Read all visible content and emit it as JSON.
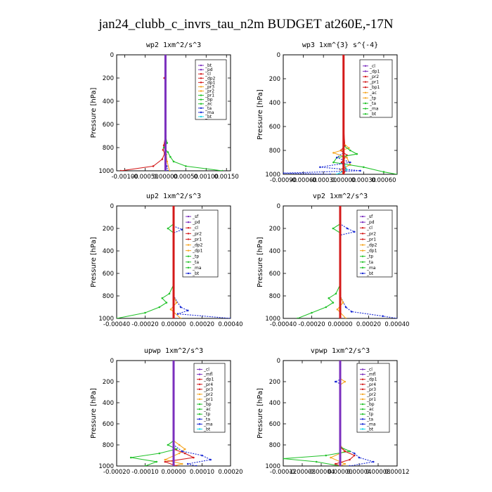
{
  "title": "jan24_clubb_c_invrs_tau_n2m  BUDGET at260E,-17N",
  "ylabel": "Pressure [hPa]",
  "colors": {
    "purple": "#7b2fbe",
    "red": "#d41a1a",
    "orange": "#f5a623",
    "green": "#22c22a",
    "blue": "#1a2ad4",
    "cyan": "#18d8e8",
    "gray": "#8a8a8a"
  },
  "chart_data": [
    {
      "type": "line",
      "title": "wp2  1xm^2/s^3",
      "xlim": [
        -0.0012,
        0.0016
      ],
      "ylim": [
        1000,
        0
      ],
      "xticks": [
        -0.001,
        -0.0005,
        0.0,
        0.0005,
        0.001,
        0.0015
      ],
      "xtick_labels": [
        "-0.00100",
        "-0.00050",
        "0.00000",
        "0.00050",
        "0.00100",
        "0.00150"
      ],
      "yticks": [
        0,
        200,
        400,
        600,
        800,
        1000
      ],
      "ytick_labels": [
        "0",
        "200",
        "400",
        "600",
        "800",
        "1000"
      ],
      "legend": [
        "_bt",
        "_pd",
        "_cl",
        "_dp2",
        "_dp1",
        "_pr3",
        "_pr2",
        "_pr1",
        "_bp",
        "_ac",
        "_ta",
        "_ma",
        "_bt"
      ],
      "series": [
        {
          "name": "_pd",
          "color": "purple",
          "p": [
            0,
            200,
            400,
            600,
            800,
            900,
            960,
            1000
          ],
          "v": [
            0,
            0,
            0,
            0,
            0,
            0,
            0,
            0
          ]
        },
        {
          "name": "_dp1",
          "color": "red",
          "p": [
            0,
            180,
            200,
            220,
            400,
            700,
            780,
            820,
            850,
            900,
            960,
            1000
          ],
          "v": [
            0,
            0,
            -3e-05,
            0,
            0,
            0,
            -4e-05,
            -6e-05,
            -2e-05,
            -8e-05,
            -0.0003,
            -0.0011
          ]
        },
        {
          "name": "_pr1",
          "color": "green",
          "p": [
            0,
            700,
            760,
            800,
            840,
            880,
            920,
            960,
            1000
          ],
          "v": [
            0,
            0,
            4e-05,
            -4e-05,
            6e-05,
            0.00012,
            0.0002,
            0.0005,
            0.0014
          ]
        },
        {
          "name": "_pr2",
          "color": "orange",
          "p": [
            0,
            800,
            860,
            920,
            1000
          ],
          "v": [
            0,
            0,
            2e-05,
            4e-05,
            0.0001
          ]
        },
        {
          "name": "_ta",
          "color": "blue",
          "p": [
            0,
            900,
            960,
            1000
          ],
          "v": [
            0,
            0,
            3e-05,
            6e-05
          ]
        }
      ]
    },
    {
      "type": "line",
      "title": "wp3  1xm^{3} s^{-4}",
      "xlim": [
        -0.0009,
        0.0008
      ],
      "ylim": [
        1000,
        0
      ],
      "xticks": [
        -0.0009,
        -0.0006,
        -0.0003,
        0.0,
        0.0003,
        0.0006
      ],
      "xtick_labels": [
        "-0.00090",
        "-0.00060",
        "-0.00030",
        "0.00000",
        "0.00030",
        "0.00060"
      ],
      "yticks": [
        0,
        200,
        400,
        600,
        800,
        1000
      ],
      "ytick_labels": [
        "0",
        "200",
        "400",
        "600",
        "800",
        "1000"
      ],
      "legend": [
        "_cl",
        "_dp1",
        "_pr2",
        "_pr1",
        "_bp1",
        "_ac",
        "_tp",
        "_ta",
        "_ma",
        "_bt"
      ],
      "series": [
        {
          "name": "_dp1",
          "color": "red",
          "p": [
            0,
            200,
            400,
            600,
            760,
            800,
            840,
            900,
            960,
            1000
          ],
          "v": [
            0,
            0,
            0,
            0,
            2e-05,
            -4e-05,
            5e-05,
            -3e-05,
            4e-05,
            0
          ]
        },
        {
          "name": "_pr2",
          "color": "orange",
          "p": [
            0,
            740,
            780,
            820,
            860,
            920,
            960,
            1000
          ],
          "v": [
            0,
            0,
            8e-05,
            -0.00015,
            5e-05,
            0.0001,
            -5e-05,
            0
          ]
        },
        {
          "name": "_ac",
          "color": "green",
          "p": [
            0,
            760,
            800,
            830,
            860,
            900,
            940,
            980,
            1000
          ],
          "v": [
            0,
            0,
            0.0001,
            0.0002,
            -0.0001,
            -0.00015,
            0.0003,
            0.0006,
            0.0008
          ]
        },
        {
          "name": "_ta",
          "color": "blue",
          "p": [
            0,
            820,
            860,
            900,
            940,
            970,
            990,
            1000
          ],
          "v": [
            0,
            0,
            -0.0001,
            0.0001,
            -0.00035,
            0.00025,
            -0.0009,
            -0.0002
          ]
        },
        {
          "name": "_tp",
          "color": "cyan",
          "p": [
            0,
            900,
            960,
            1000
          ],
          "v": [
            0,
            0,
            5e-05,
            -0.0001
          ]
        },
        {
          "name": "_cl",
          "color": "red",
          "p": [
            0,
            1000
          ],
          "v": [
            0,
            0
          ]
        }
      ]
    },
    {
      "type": "line",
      "title": "up2  1xm^2/s^3",
      "xlim": [
        -0.0004,
        0.0004
      ],
      "ylim": [
        1000,
        0
      ],
      "xticks": [
        -0.0004,
        -0.0002,
        0.0,
        0.0002,
        0.0004
      ],
      "xtick_labels": [
        "-0.00040",
        "-0.00020",
        "0.00000",
        "0.00020",
        "0.00040"
      ],
      "yticks": [
        0,
        200,
        400,
        600,
        800,
        1000
      ],
      "ytick_labels": [
        "0",
        "200",
        "400",
        "600",
        "800",
        "1000"
      ],
      "legend": [
        "_sf",
        "_pd",
        "_cl",
        "_pr2",
        "_pr1",
        "_dp2",
        "_dp1",
        "_tp",
        "_ta",
        "_ma",
        "_bt"
      ],
      "series": [
        {
          "name": "_pr1",
          "color": "green",
          "p": [
            0,
            160,
            200,
            240,
            700,
            780,
            820,
            860,
            900,
            950,
            1000
          ],
          "v": [
            0,
            0,
            -4e-05,
            0,
            0,
            -3e-05,
            -8e-05,
            -5e-05,
            -0.0001,
            -0.0002,
            -0.0004
          ]
        },
        {
          "name": "_dp1",
          "color": "blue",
          "p": [
            0,
            180,
            210,
            240,
            800,
            900,
            930,
            960,
            1000
          ],
          "v": [
            0,
            0,
            6e-05,
            0,
            0,
            5e-05,
            0.0001,
            3e-05,
            0.0004
          ]
        },
        {
          "name": "_pr2",
          "color": "orange",
          "p": [
            0,
            800,
            860,
            920,
            1000
          ],
          "v": [
            0,
            0,
            2e-05,
            -2e-05,
            5e-05
          ]
        },
        {
          "name": "_cl",
          "color": "red",
          "p": [
            0,
            200,
            400,
            600,
            800,
            1000
          ],
          "v": [
            0,
            0,
            0,
            0,
            0,
            0
          ]
        }
      ]
    },
    {
      "type": "line",
      "title": "vp2  1xm^2/s^3",
      "xlim": [
        -0.0004,
        0.0004
      ],
      "ylim": [
        1000,
        0
      ],
      "xticks": [
        -0.0004,
        -0.0002,
        0.0,
        0.0002,
        0.0004
      ],
      "xtick_labels": [
        "-0.00040",
        "-0.00020",
        "0.00000",
        "0.00020",
        "0.00040"
      ],
      "yticks": [
        0,
        200,
        400,
        600,
        800,
        1000
      ],
      "ytick_labels": [
        "0",
        "200",
        "400",
        "600",
        "800",
        "1000"
      ],
      "legend": [
        "_sf",
        "_pd",
        "_cl",
        "_pr2",
        "_pr1",
        "_dp2",
        "_dp1",
        "_tp",
        "_ta",
        "_ma",
        "_bt"
      ],
      "series": [
        {
          "name": "_pr1",
          "color": "green",
          "p": [
            0,
            160,
            200,
            240,
            700,
            780,
            820,
            860,
            900,
            950,
            1000
          ],
          "v": [
            0,
            0,
            -5e-05,
            0,
            0,
            -3e-05,
            -8e-05,
            -5e-05,
            -0.0001,
            -0.0002,
            -0.0003
          ]
        },
        {
          "name": "_dp1",
          "color": "blue",
          "p": [
            0,
            160,
            200,
            230,
            260,
            800,
            900,
            940,
            980,
            1000
          ],
          "v": [
            0,
            0,
            5e-05,
            0.0001,
            0,
            0,
            4e-05,
            8e-05,
            0.0003,
            0.0004
          ]
        },
        {
          "name": "_pr2",
          "color": "orange",
          "p": [
            0,
            800,
            860,
            920,
            1000
          ],
          "v": [
            0,
            0,
            2e-05,
            -2e-05,
            4e-05
          ]
        },
        {
          "name": "_cl",
          "color": "red",
          "p": [
            0,
            200,
            400,
            600,
            800,
            1000
          ],
          "v": [
            0,
            0,
            0,
            0,
            0,
            0
          ]
        }
      ]
    },
    {
      "type": "line",
      "title": "upwp  1xm^2/s^3",
      "xlim": [
        -0.0002,
        0.0002
      ],
      "ylim": [
        1000,
        0
      ],
      "xticks": [
        -0.0002,
        -0.0001,
        0.0,
        0.0001,
        0.0002
      ],
      "xtick_labels": [
        "-0.00020",
        "-0.00010",
        "0.00000",
        "0.00010",
        "0.00020"
      ],
      "yticks": [
        0,
        200,
        400,
        600,
        800,
        1000
      ],
      "ytick_labels": [
        "0",
        "200",
        "400",
        "600",
        "800",
        "1000"
      ],
      "legend": [
        "_cl",
        "_mfl",
        "_dp1",
        "_pr4",
        "_pr3",
        "_pr2",
        "_pr1",
        "_bp",
        "_ac",
        "_tp",
        "_ta",
        "_ma",
        "_bt"
      ],
      "series": [
        {
          "name": "_pr1",
          "color": "green",
          "p": [
            0,
            760,
            800,
            840,
            880,
            920,
            960,
            1000
          ],
          "v": [
            0,
            0,
            -2e-05,
            1e-05,
            -5e-05,
            -0.00015,
            -6e-05,
            -0.0001
          ]
        },
        {
          "name": "_pr2",
          "color": "orange",
          "p": [
            0,
            760,
            800,
            840,
            880,
            940,
            980,
            1000
          ],
          "v": [
            0,
            0,
            2e-05,
            4e-05,
            2e-05,
            -3e-05,
            3e-05,
            0
          ]
        },
        {
          "name": "_dp1",
          "color": "red",
          "p": [
            0,
            840,
            880,
            920,
            960,
            1000
          ],
          "v": [
            0,
            0,
            4e-05,
            7e-05,
            -3e-05,
            1e-05
          ]
        },
        {
          "name": "_ta",
          "color": "blue",
          "p": [
            0,
            800,
            860,
            900,
            940,
            980,
            1000
          ],
          "v": [
            0,
            0,
            3e-05,
            0.0001,
            0.00013,
            5e-05,
            8e-05
          ]
        },
        {
          "name": "_cl",
          "color": "purple",
          "p": [
            0,
            200,
            400,
            600,
            800,
            1000
          ],
          "v": [
            0,
            0,
            0,
            0,
            0,
            0
          ]
        }
      ]
    },
    {
      "type": "line",
      "title": "vpwp  1xm^2/s^3",
      "xlim": [
        -0.00012,
        0.00012
      ],
      "ylim": [
        1000,
        0
      ],
      "xticks": [
        -0.00012,
        -8e-05,
        -4e-05,
        0.0,
        4e-05,
        8e-05,
        0.00012
      ],
      "xtick_labels": [
        "-0.00012",
        "-0.00008",
        "-0.00004",
        "0.00000",
        "0.00004",
        "0.00008",
        "0.00012"
      ],
      "yticks": [
        0,
        200,
        400,
        600,
        800,
        1000
      ],
      "ytick_labels": [
        "0",
        "200",
        "400",
        "600",
        "800",
        "1000"
      ],
      "legend": [
        "_cl",
        "_mfl",
        "_dp1",
        "_pr4",
        "_pr3",
        "_pr2",
        "_pr1",
        "_bp",
        "_ac",
        "_tp",
        "_ta",
        "_ma",
        "_bt"
      ],
      "series": [
        {
          "name": "_pr2",
          "color": "orange",
          "p": [
            0,
            170,
            200,
            230,
            800,
            860,
            920,
            980,
            1000
          ],
          "v": [
            0,
            0,
            1e-05,
            0,
            0,
            1e-05,
            -2e-05,
            1e-05,
            0
          ]
        },
        {
          "name": "_ta",
          "color": "blue",
          "p": [
            0,
            180,
            200,
            220,
            820,
            880,
            920,
            960,
            1000
          ],
          "v": [
            0,
            0,
            -1e-05,
            0,
            0,
            3e-05,
            4e-05,
            7e-05,
            2e-05
          ]
        },
        {
          "name": "_pr1",
          "color": "green",
          "p": [
            0,
            820,
            860,
            900,
            930,
            960,
            1000
          ],
          "v": [
            0,
            0,
            2e-05,
            -3e-05,
            -0.00012,
            -5e-05,
            0
          ]
        },
        {
          "name": "_dp1",
          "color": "red",
          "p": [
            0,
            820,
            860,
            900,
            940,
            980,
            1000
          ],
          "v": [
            0,
            0,
            1e-05,
            3e-05,
            2e-05,
            -1e-05,
            0
          ]
        },
        {
          "name": "_cl",
          "color": "purple",
          "p": [
            0,
            200,
            400,
            600,
            800,
            1000
          ],
          "v": [
            0,
            0,
            0,
            0,
            0,
            0
          ]
        }
      ]
    }
  ]
}
